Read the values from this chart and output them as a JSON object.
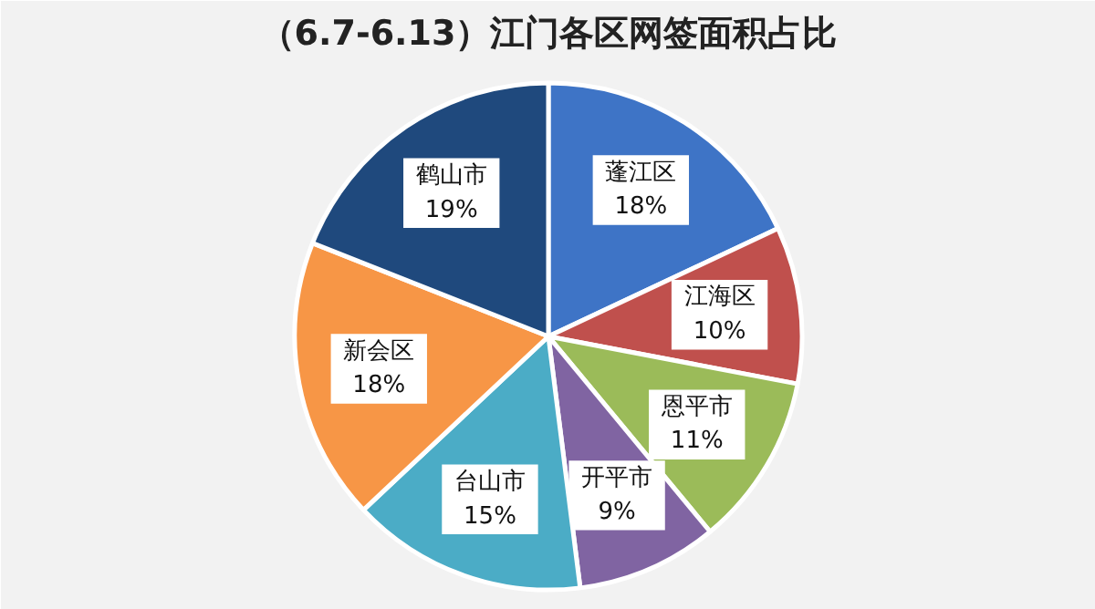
{
  "chart_data": {
    "type": "pie",
    "title": "（6.7-6.13）江门各区网签面积占比",
    "categories": [
      "蓬江区",
      "江海区",
      "恩平市",
      "开平市",
      "台山市",
      "新会区",
      "鹤山市"
    ],
    "values": [
      18,
      10,
      11,
      9,
      15,
      18,
      19
    ],
    "value_labels": [
      "18%",
      "10%",
      "11%",
      "9%",
      "15%",
      "18%",
      "19%"
    ],
    "colors": [
      "#3e74c6",
      "#c0504d",
      "#9bbb59",
      "#8064a2",
      "#4bacc6",
      "#f79646",
      "#1f497d"
    ],
    "legend": false
  }
}
